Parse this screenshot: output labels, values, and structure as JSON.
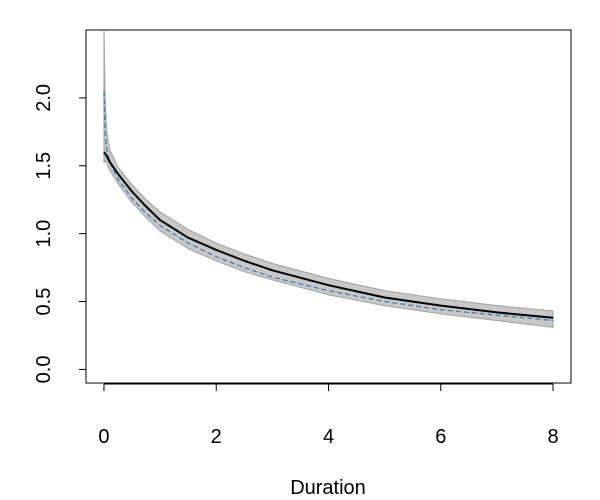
{
  "chart_data": {
    "type": "line",
    "title": "",
    "xlabel": "Duration",
    "ylabel": "",
    "xlim": [
      -0.32,
      8.32
    ],
    "ylim": [
      -0.1,
      2.5
    ],
    "xticks": [
      0,
      2,
      4,
      6,
      8
    ],
    "yticks": [
      0.0,
      0.5,
      1.0,
      1.5,
      2.0
    ],
    "xtick_labels": [
      "0",
      "2",
      "4",
      "6",
      "8"
    ],
    "ytick_labels": [
      "0.0",
      "0.5",
      "1.0",
      "1.5",
      "2.0"
    ],
    "grid": false,
    "legend": "none",
    "x": [
      0,
      0.02,
      0.05,
      0.1,
      0.25,
      0.5,
      0.75,
      1,
      1.5,
      2,
      2.5,
      3,
      4,
      5,
      6,
      7,
      8
    ],
    "series": [
      {
        "role": "estimate",
        "style": "solid",
        "color": "#000000",
        "values": [
          1.6,
          1.59,
          1.57,
          1.53,
          1.44,
          1.31,
          1.2,
          1.1,
          0.97,
          0.88,
          0.8,
          0.73,
          0.62,
          0.53,
          0.47,
          0.42,
          0.38
        ]
      },
      {
        "role": "reference",
        "style": "dashed",
        "color": "#3d7fc0",
        "values": [
          2.05,
          1.75,
          1.62,
          1.53,
          1.4,
          1.26,
          1.15,
          1.06,
          0.93,
          0.83,
          0.75,
          0.68,
          0.58,
          0.5,
          0.44,
          0.4,
          0.36
        ]
      },
      {
        "role": "band-upper",
        "values": [
          2.55,
          2.0,
          1.75,
          1.62,
          1.49,
          1.36,
          1.25,
          1.16,
          1.03,
          0.93,
          0.85,
          0.78,
          0.67,
          0.58,
          0.52,
          0.47,
          0.43
        ]
      },
      {
        "role": "band-lower",
        "values": [
          1.52,
          1.54,
          1.52,
          1.47,
          1.37,
          1.23,
          1.12,
          1.02,
          0.89,
          0.8,
          0.72,
          0.66,
          0.55,
          0.47,
          0.41,
          0.36,
          0.31
        ]
      }
    ],
    "colors": {
      "band_fill": "#c8c8c8",
      "band_edge": "#a8a8a8",
      "axis": "#000000"
    }
  }
}
